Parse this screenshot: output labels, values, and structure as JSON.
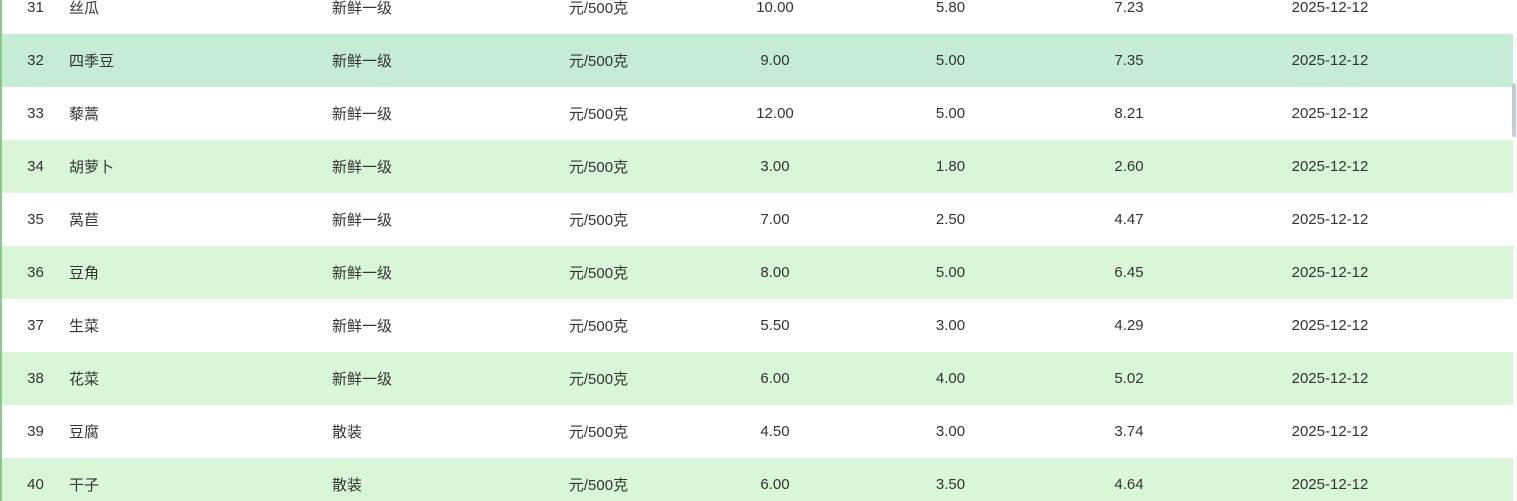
{
  "table": {
    "columns": [
      {
        "key": "index",
        "name": "cell-row-number",
        "align": "center"
      },
      {
        "key": "name",
        "name": "cell-product-name",
        "align": "left"
      },
      {
        "key": "grade",
        "name": "cell-grade-spec",
        "align": "left"
      },
      {
        "key": "unit",
        "name": "cell-unit",
        "align": "center"
      },
      {
        "key": "high_price",
        "name": "cell-high-price",
        "align": "center"
      },
      {
        "key": "low_price",
        "name": "cell-low-price",
        "align": "center"
      },
      {
        "key": "avg_price",
        "name": "cell-avg-price",
        "align": "center"
      },
      {
        "key": "date",
        "name": "cell-date",
        "align": "center"
      }
    ],
    "rows": [
      {
        "index": "31",
        "name": "丝瓜",
        "grade": "新鲜一级",
        "unit": "元/500克",
        "high_price": "10.00",
        "low_price": "5.80",
        "avg_price": "7.23",
        "date": "2025-12-12",
        "highlighted": false
      },
      {
        "index": "32",
        "name": "四季豆",
        "grade": "新鲜一级",
        "unit": "元/500克",
        "high_price": "9.00",
        "low_price": "5.00",
        "avg_price": "7.35",
        "date": "2025-12-12",
        "highlighted": true
      },
      {
        "index": "33",
        "name": "藜蒿",
        "grade": "新鲜一级",
        "unit": "元/500克",
        "high_price": "12.00",
        "low_price": "5.00",
        "avg_price": "8.21",
        "date": "2025-12-12",
        "highlighted": false
      },
      {
        "index": "34",
        "name": "胡萝卜",
        "grade": "新鲜一级",
        "unit": "元/500克",
        "high_price": "3.00",
        "low_price": "1.80",
        "avg_price": "2.60",
        "date": "2025-12-12",
        "highlighted": false
      },
      {
        "index": "35",
        "name": "莴苣",
        "grade": "新鲜一级",
        "unit": "元/500克",
        "high_price": "7.00",
        "low_price": "2.50",
        "avg_price": "4.47",
        "date": "2025-12-12",
        "highlighted": false
      },
      {
        "index": "36",
        "name": "豆角",
        "grade": "新鲜一级",
        "unit": "元/500克",
        "high_price": "8.00",
        "low_price": "5.00",
        "avg_price": "6.45",
        "date": "2025-12-12",
        "highlighted": false
      },
      {
        "index": "37",
        "name": "生菜",
        "grade": "新鲜一级",
        "unit": "元/500克",
        "high_price": "5.50",
        "low_price": "3.00",
        "avg_price": "4.29",
        "date": "2025-12-12",
        "highlighted": false
      },
      {
        "index": "38",
        "name": "花菜",
        "grade": "新鲜一级",
        "unit": "元/500克",
        "high_price": "6.00",
        "low_price": "4.00",
        "avg_price": "5.02",
        "date": "2025-12-12",
        "highlighted": false
      },
      {
        "index": "39",
        "name": "豆腐",
        "grade": "散装",
        "unit": "元/500克",
        "high_price": "4.50",
        "low_price": "3.00",
        "avg_price": "3.74",
        "date": "2025-12-12",
        "highlighted": false
      },
      {
        "index": "40",
        "name": "干子",
        "grade": "散装",
        "unit": "元/500克",
        "high_price": "6.00",
        "low_price": "3.50",
        "avg_price": "4.64",
        "date": "2025-12-12",
        "highlighted": false
      }
    ],
    "highlighted_row_index": "32"
  },
  "colors": {
    "stripe_green": "#daf6d9",
    "highlight_teal": "#c6ecd5",
    "left_border_green": "#8bc88f",
    "scrollbar_thumb": "#c6cad2",
    "text_color": "#333333"
  }
}
